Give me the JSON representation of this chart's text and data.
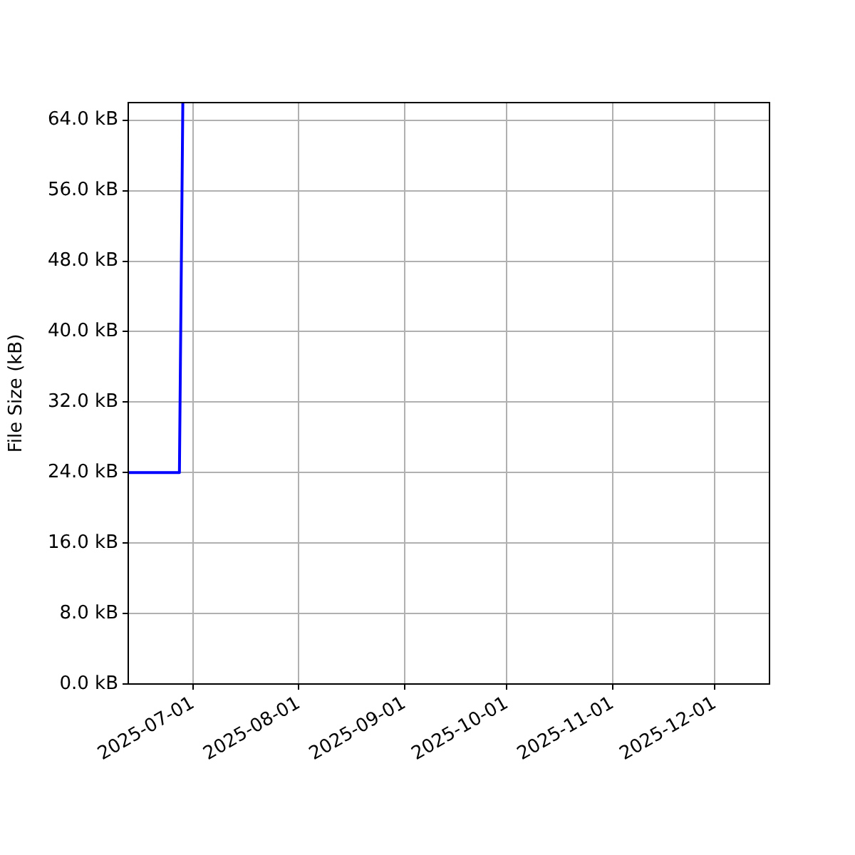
{
  "chart_data": {
    "type": "line",
    "ylabel": "File Size (kB)",
    "x": [
      "2025-06-12",
      "2025-06-27",
      "2025-06-28"
    ],
    "series": [
      {
        "color": "#0000ff",
        "values": [
          24,
          24,
          66
        ]
      }
    ],
    "xlim": [
      "2025-06-12",
      "2025-12-17"
    ],
    "xticks": [
      "2025-07-01",
      "2025-08-01",
      "2025-09-01",
      "2025-10-01",
      "2025-11-01",
      "2025-12-01"
    ],
    "ylim": [
      0,
      66
    ],
    "yticks": [
      {
        "value": 0,
        "label": "0.0 kB"
      },
      {
        "value": 8,
        "label": "8.0 kB"
      },
      {
        "value": 16,
        "label": "16.0 kB"
      },
      {
        "value": 24,
        "label": "24.0 kB"
      },
      {
        "value": 32,
        "label": "32.0 kB"
      },
      {
        "value": 40,
        "label": "40.0 kB"
      },
      {
        "value": 48,
        "label": "48.0 kB"
      },
      {
        "value": 56,
        "label": "56.0 kB"
      },
      {
        "value": 64,
        "label": "64.0 kB"
      }
    ],
    "grid": true,
    "legend": false,
    "marker": "none",
    "line_style": "solid"
  }
}
